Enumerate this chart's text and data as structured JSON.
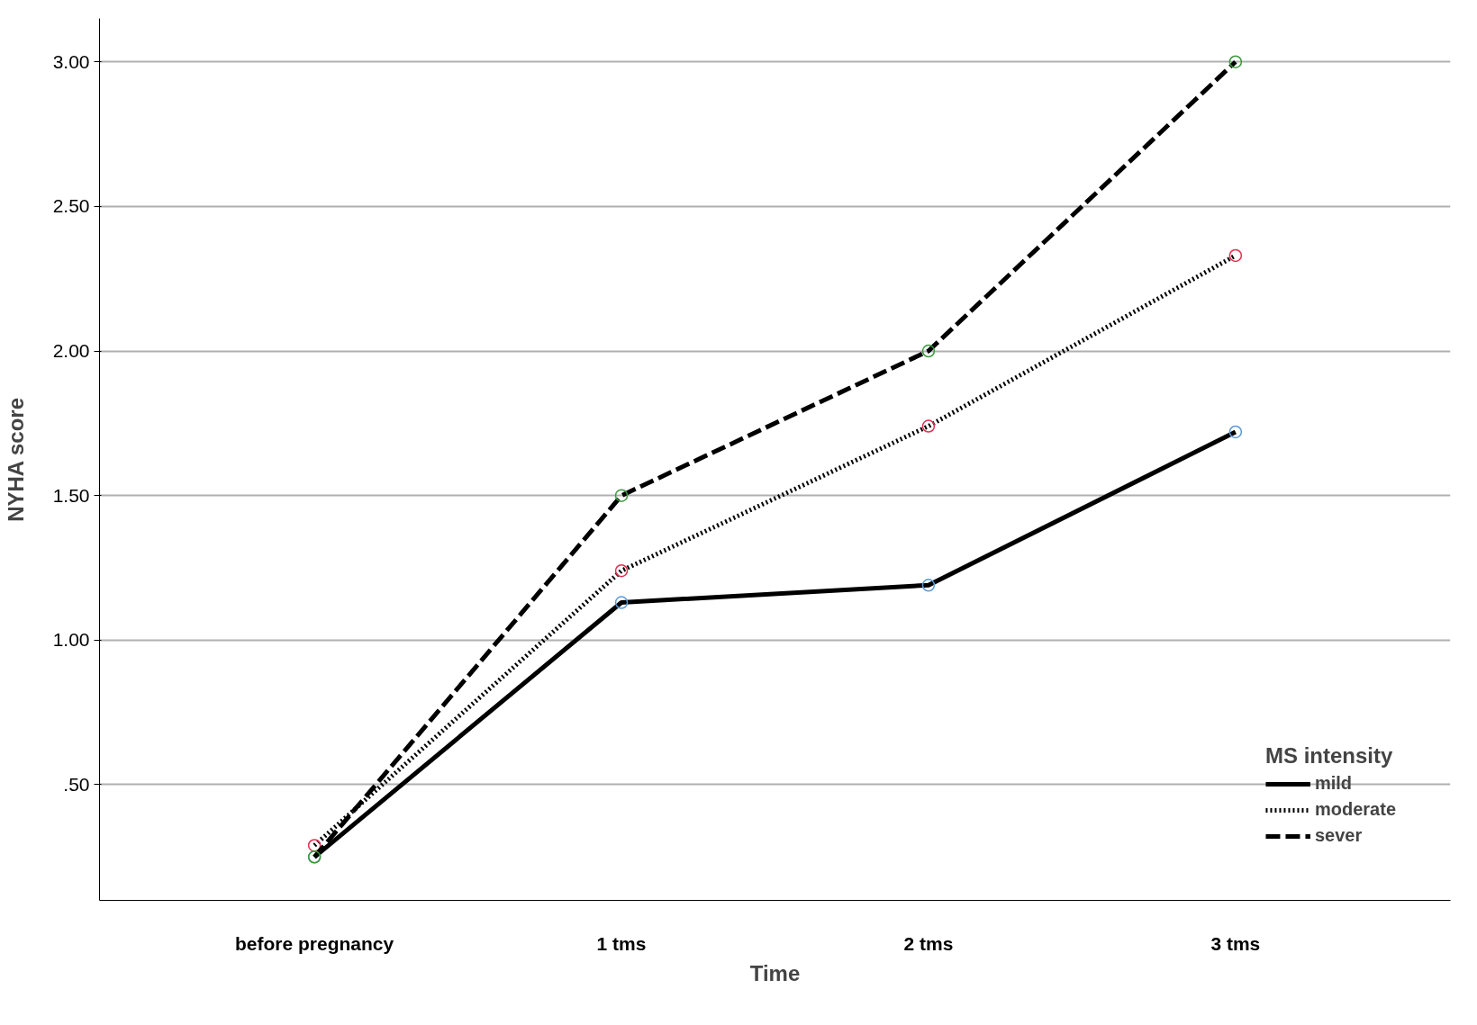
{
  "chart_data": {
    "type": "line",
    "xlabel": "Time",
    "ylabel": "NYHA score",
    "legend_title": "MS intensity",
    "categories": [
      "before pregnancy",
      "1 tms",
      "2 tms",
      "3 tms"
    ],
    "series": [
      {
        "name": "mild",
        "color": "#000000",
        "colors": [
          "#5b9bd5",
          "#5b9bd5",
          "#5b9bd5",
          "#5b9bd5"
        ],
        "line_style": "solid",
        "values": [
          0.25,
          1.13,
          1.19,
          1.72
        ]
      },
      {
        "name": "moderate",
        "color": "#000000",
        "colors": [
          "#e0304e",
          "#e0304e",
          "#e0304e",
          "#e0304e"
        ],
        "line_style": "dotted",
        "values": [
          0.29,
          1.24,
          1.74,
          2.33
        ]
      },
      {
        "name": "sever",
        "color": "#000000",
        "colors": [
          "#3a9a3a",
          "#3a9a3a",
          "#3a9a3a",
          "#3a9a3a"
        ],
        "line_style": "dashed",
        "values": [
          0.25,
          1.5,
          2.0,
          3.0
        ]
      }
    ],
    "ylim": [
      0.1,
      3.15
    ],
    "yticks": [
      {
        "value": 0.5,
        "label": ".50"
      },
      {
        "value": 1.0,
        "label": "1.00"
      },
      {
        "value": 1.5,
        "label": "1.50"
      },
      {
        "value": 2.0,
        "label": "2.00"
      },
      {
        "value": 2.5,
        "label": "2.50"
      },
      {
        "value": 3.0,
        "label": "3.00"
      }
    ],
    "grid": "y",
    "legend": "bottom right",
    "marker": "circle"
  }
}
